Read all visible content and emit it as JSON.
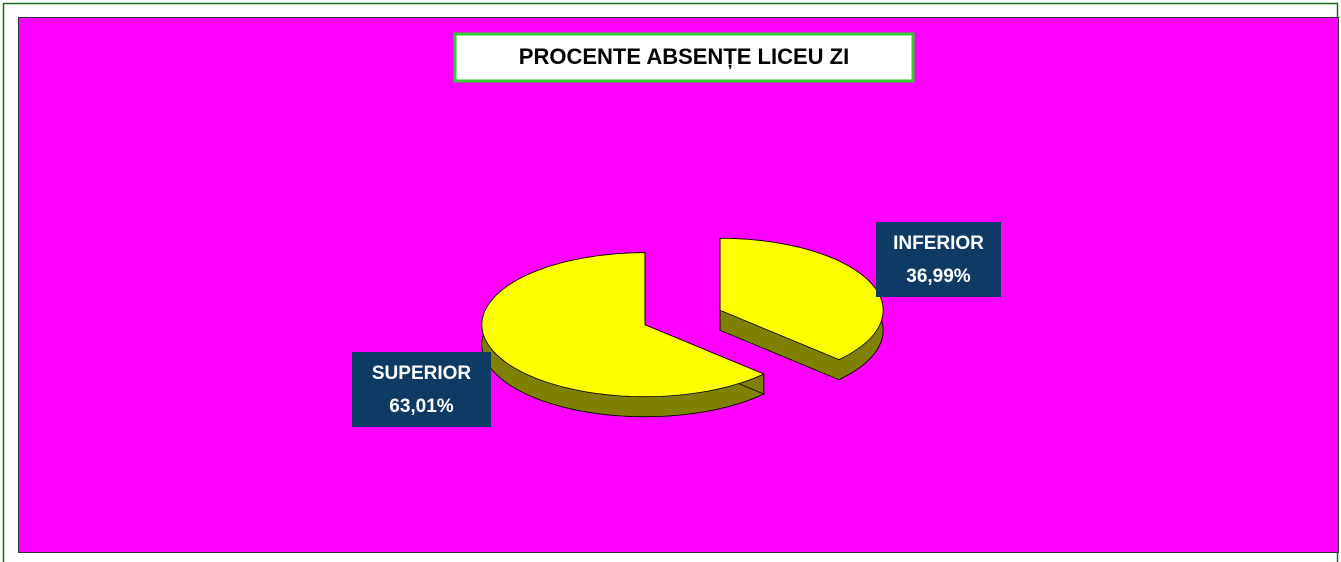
{
  "chart_data": {
    "type": "pie",
    "title": "PROCENTE ABSENȚE LICEU ZI",
    "categories": [
      "INFERIOR",
      "SUPERIOR"
    ],
    "values": [
      36.99,
      63.01
    ],
    "value_labels": [
      "36,99%",
      "63,01%"
    ],
    "colors": [
      "#ffff00",
      "#ffff00"
    ],
    "background": "#ff00ff",
    "three_d": true,
    "exploded": true
  }
}
